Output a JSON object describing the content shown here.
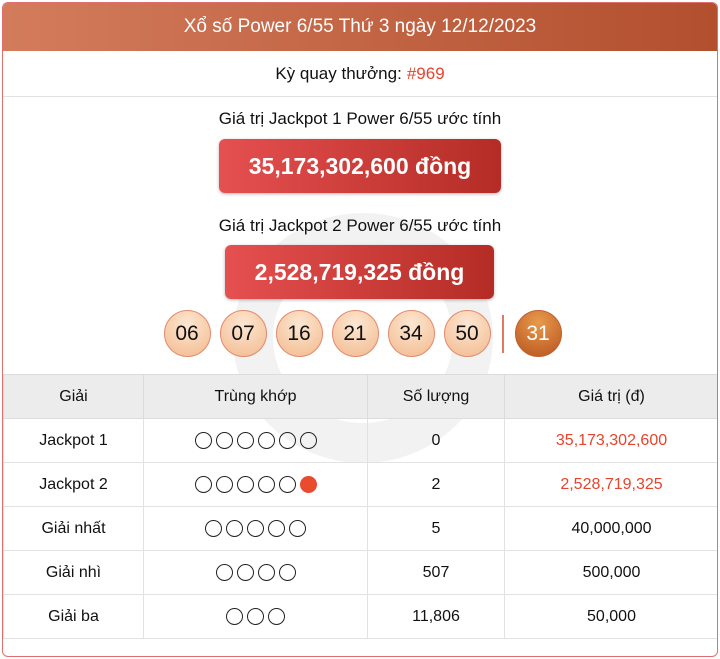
{
  "header": {
    "title": "Xổ số Power 6/55 Thứ 3 ngày 12/12/2023"
  },
  "draw": {
    "label": "Kỳ quay thưởng:",
    "number": "#969"
  },
  "jackpot1": {
    "label": "Giá trị Jackpot 1 Power 6/55 ước tính",
    "value": "35,173,302,600 đồng"
  },
  "jackpot2": {
    "label": "Giá trị Jackpot 2 Power 6/55 ước tính",
    "value": "2,528,719,325 đồng"
  },
  "numbers": [
    "06",
    "07",
    "16",
    "21",
    "34",
    "50"
  ],
  "special": "31",
  "colors": {
    "accent": "#e8432c",
    "header": "#c0603e"
  },
  "table": {
    "headers": [
      "Giải",
      "Trùng khớp",
      "Số lượng",
      "Giá trị (đ)"
    ],
    "rows": [
      {
        "prize": "Jackpot 1",
        "match": 6,
        "special_match": false,
        "count": "0",
        "value": "35,173,302,600",
        "highlight": true
      },
      {
        "prize": "Jackpot 2",
        "match": 5,
        "special_match": true,
        "count": "2",
        "value": "2,528,719,325",
        "highlight": true
      },
      {
        "prize": "Giải nhất",
        "match": 5,
        "special_match": false,
        "count": "5",
        "value": "40,000,000",
        "highlight": false
      },
      {
        "prize": "Giải nhì",
        "match": 4,
        "special_match": false,
        "count": "507",
        "value": "500,000",
        "highlight": false
      },
      {
        "prize": "Giải ba",
        "match": 3,
        "special_match": false,
        "count": "11,806",
        "value": "50,000",
        "highlight": false
      }
    ]
  }
}
